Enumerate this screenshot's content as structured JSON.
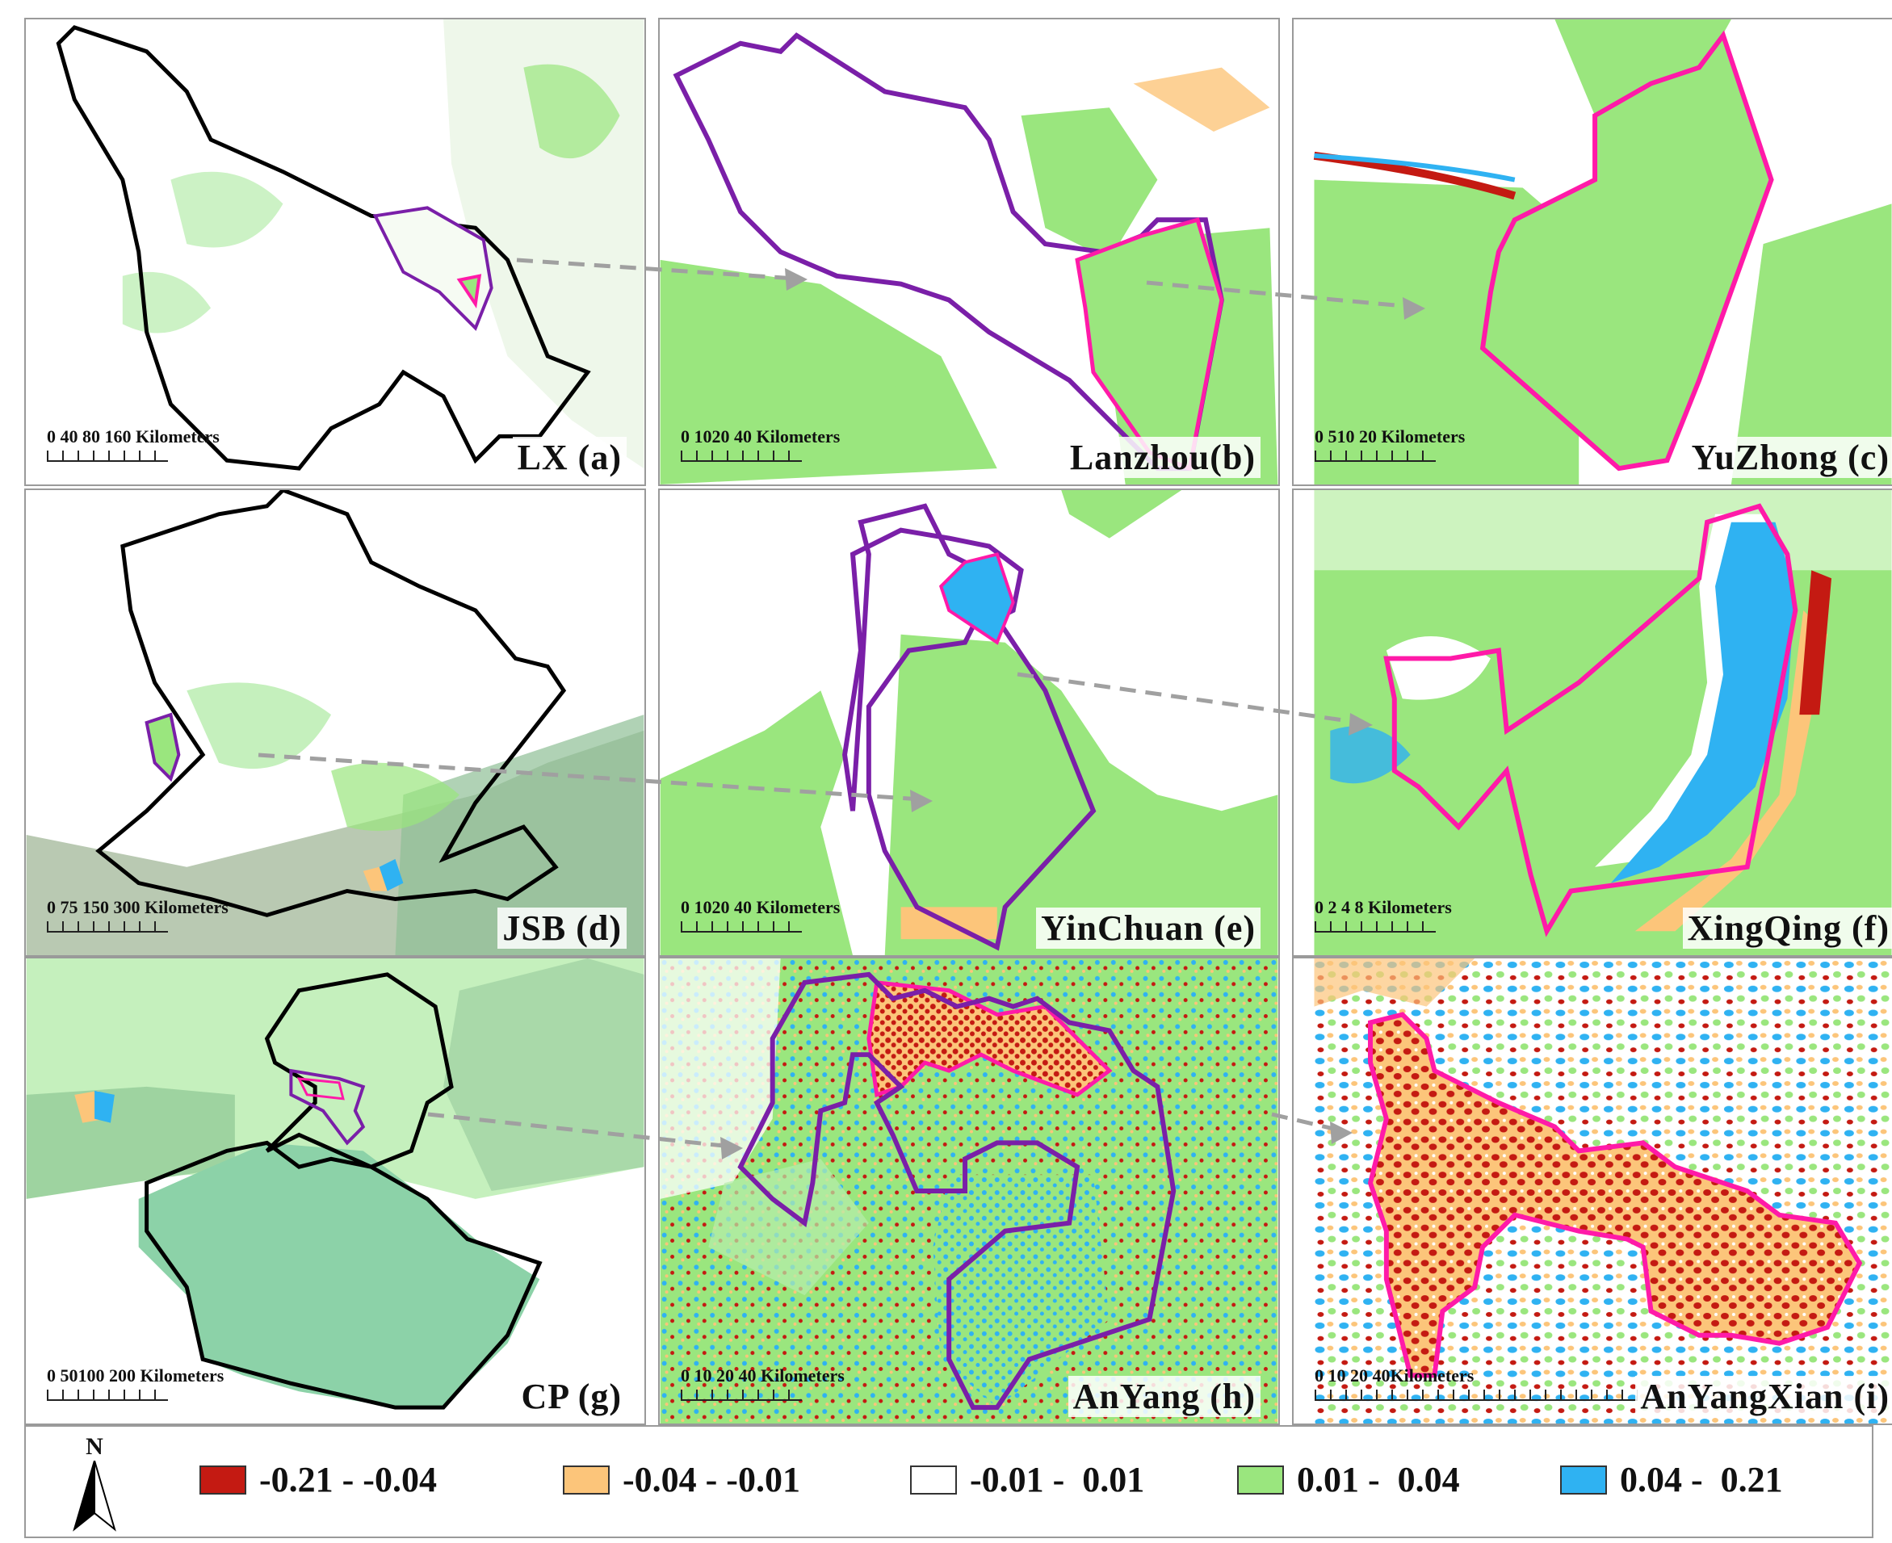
{
  "panels": [
    {
      "id": "a",
      "label": "LX (a)",
      "scale": "0 40 80      160 Kilometers"
    },
    {
      "id": "b",
      "label": "Lanzhou(b)",
      "scale": "0 1020     40 Kilometers"
    },
    {
      "id": "c",
      "label": "YuZhong (c)",
      "scale": "0 510   20 Kilometers"
    },
    {
      "id": "d",
      "label": "JSB (d)",
      "scale": "0   75 150     300 Kilometers"
    },
    {
      "id": "e",
      "label": "YinChuan (e)",
      "scale": "0 1020     40 Kilometers"
    },
    {
      "id": "f",
      "label": "XingQing (f)",
      "scale": "0 2 4     8 Kilometers"
    },
    {
      "id": "g",
      "label": "CP (g)",
      "scale": "0 50100   200 Kilometers"
    },
    {
      "id": "h",
      "label": "AnYang (h)",
      "scale": "0  10 20     40  Kilometers"
    },
    {
      "id": "i",
      "label": "AnYangXian (i)",
      "scale": "0        10        20                        40Kilometers"
    }
  ],
  "legend": {
    "north_label": "N",
    "items": [
      {
        "label": "-0.21 - -0.04",
        "color": "#c41a12"
      },
      {
        "label": "-0.04 - -0.01",
        "color": "#fcc57a"
      },
      {
        "label": "-0.01 -  0.01",
        "color": "#ffffff"
      },
      {
        "label": "0.01 -  0.04",
        "color": "#9ae67e"
      },
      {
        "label": "0.04 -  0.21",
        "color": "#2fb2f2"
      }
    ]
  },
  "colors": {
    "outer_boundary": "#000000",
    "city_boundary": "#7a1fa8",
    "county_boundary": "#ff1aa8",
    "arrow": "#a0a0a0"
  }
}
